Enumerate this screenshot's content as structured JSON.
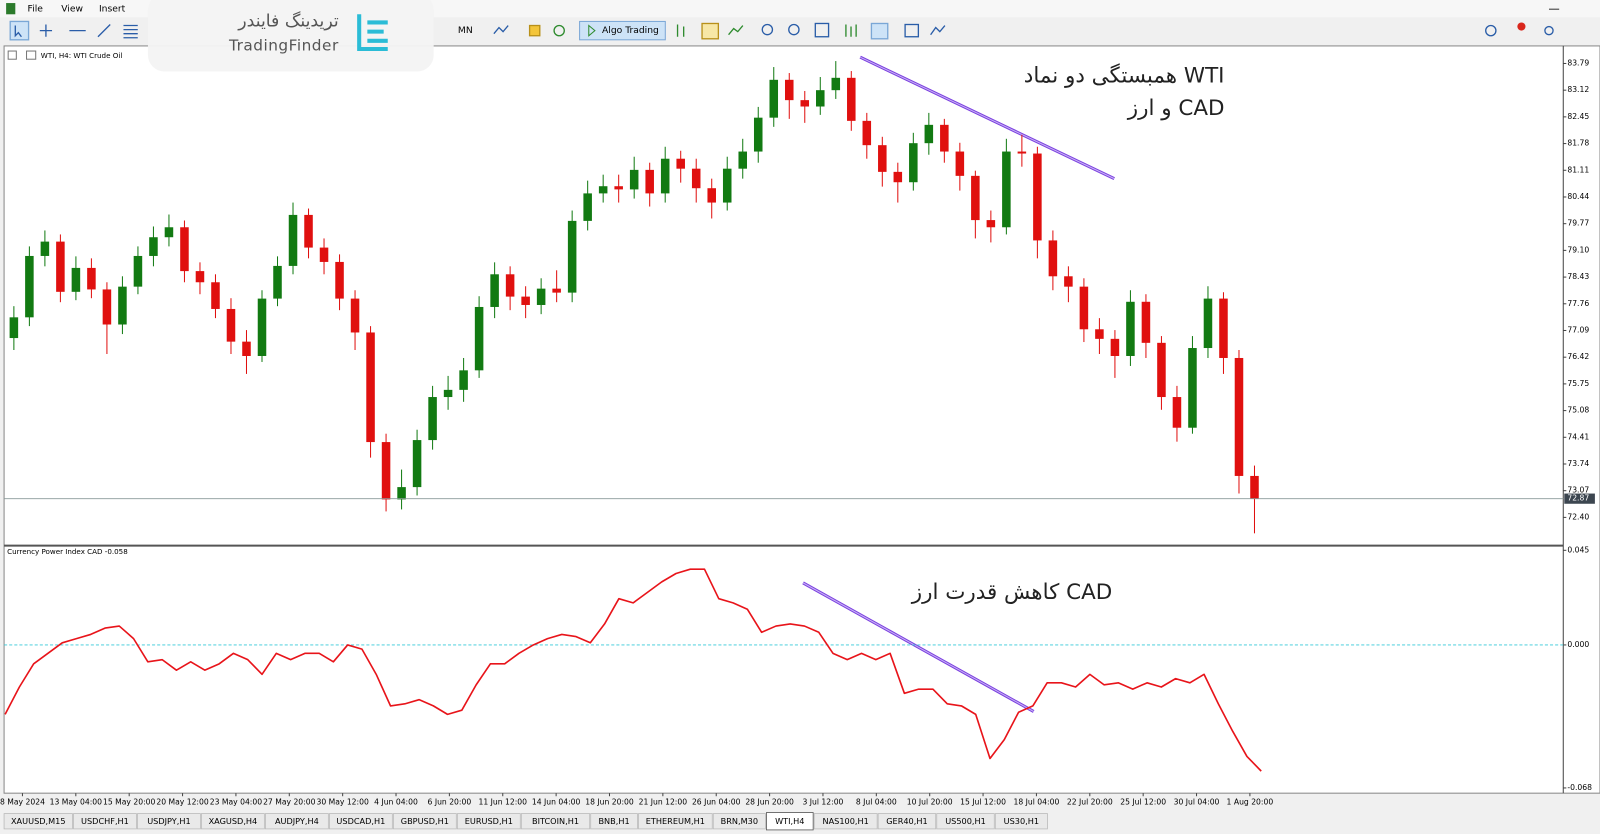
{
  "menu": [
    "File",
    "View",
    "Insert"
  ],
  "toolbar": {
    "period": "MN",
    "algo": "Algo Trading"
  },
  "logo": {
    "fa": "تریدینگ فایندر",
    "en": "TradingFinder"
  },
  "chart_data": [
    {
      "type": "candlestick",
      "title": "WTI, H4: WTI Crude Oil",
      "open": [
        76.9,
        77.42,
        78.96,
        79.32,
        78.06,
        78.66,
        78.12,
        77.24,
        78.19,
        78.96,
        79.43,
        79.68,
        78.58,
        78.3,
        77.63,
        76.81,
        76.45,
        77.89,
        78.71,
        79.99,
        79.17,
        78.81,
        77.89,
        77.04,
        74.29,
        72.85,
        73.16,
        74.34,
        75.42,
        75.6,
        76.09,
        77.68,
        78.5,
        77.94,
        77.73,
        78.14,
        78.04,
        79.84,
        80.53,
        80.71,
        80.63,
        81.12,
        80.53,
        81.4,
        81.15,
        80.66,
        80.3,
        81.15,
        81.58,
        82.43,
        83.38,
        82.87,
        82.71,
        83.12,
        83.43,
        82.35,
        81.74,
        81.07,
        80.81,
        81.79,
        82.25,
        81.58,
        80.97,
        79.86,
        79.68,
        81.58,
        81.53,
        79.35,
        78.45,
        78.19,
        77.12,
        76.88,
        76.45,
        77.81,
        76.78,
        75.42,
        74.65,
        76.65,
        77.89,
        76.4,
        73.44
      ],
      "high": [
        77.7,
        79.2,
        79.6,
        79.5,
        78.95,
        78.9,
        78.3,
        78.45,
        79.2,
        79.7,
        80.0,
        79.85,
        78.8,
        78.5,
        77.9,
        77.1,
        78.1,
        78.95,
        80.3,
        80.15,
        79.4,
        79.0,
        78.1,
        77.2,
        74.5,
        73.6,
        74.6,
        75.7,
        75.95,
        76.4,
        77.95,
        78.8,
        78.7,
        78.2,
        78.4,
        78.6,
        80.1,
        80.85,
        81.0,
        81.0,
        81.45,
        81.3,
        81.7,
        81.6,
        81.4,
        80.9,
        81.45,
        81.9,
        82.7,
        83.7,
        83.55,
        83.1,
        83.45,
        83.85,
        83.6,
        82.55,
        81.95,
        81.3,
        82.05,
        82.55,
        82.4,
        81.8,
        81.1,
        80.1,
        81.9,
        82.0,
        81.7,
        79.6,
        78.7,
        78.4,
        77.4,
        77.1,
        78.1,
        78.0,
        76.95,
        75.7,
        76.95,
        78.2,
        78.05,
        76.6,
        73.7
      ],
      "low": [
        76.6,
        77.2,
        78.7,
        77.8,
        77.85,
        77.9,
        76.5,
        77.0,
        78.0,
        78.7,
        79.2,
        78.3,
        78.0,
        77.4,
        76.5,
        76.0,
        76.3,
        77.7,
        78.5,
        78.9,
        78.5,
        77.6,
        76.6,
        73.9,
        72.55,
        72.6,
        72.95,
        74.1,
        75.1,
        75.3,
        75.9,
        77.4,
        77.6,
        77.4,
        77.5,
        77.8,
        77.8,
        79.6,
        80.3,
        80.3,
        80.4,
        80.2,
        80.3,
        80.8,
        80.3,
        79.9,
        80.1,
        80.9,
        81.3,
        82.2,
        82.4,
        82.3,
        82.5,
        82.9,
        82.1,
        81.4,
        80.7,
        80.3,
        80.6,
        81.5,
        81.3,
        80.6,
        79.4,
        79.3,
        79.5,
        81.2,
        78.9,
        78.1,
        77.8,
        76.8,
        76.5,
        75.9,
        76.2,
        76.4,
        75.1,
        74.3,
        74.5,
        76.4,
        76.0,
        73.0,
        72.0
      ],
      "close": [
        77.42,
        78.96,
        79.32,
        78.06,
        78.66,
        78.12,
        77.24,
        78.19,
        78.96,
        79.43,
        79.68,
        78.58,
        78.3,
        77.63,
        76.81,
        76.45,
        77.89,
        78.71,
        79.99,
        79.17,
        78.81,
        77.89,
        77.04,
        74.29,
        72.85,
        73.16,
        74.34,
        75.42,
        75.6,
        76.09,
        77.68,
        78.5,
        77.94,
        77.73,
        78.14,
        78.04,
        79.84,
        80.53,
        80.71,
        80.63,
        81.12,
        80.53,
        81.4,
        81.15,
        80.66,
        80.3,
        81.15,
        81.58,
        82.43,
        83.38,
        82.87,
        82.71,
        83.12,
        83.43,
        82.35,
        81.74,
        81.07,
        80.81,
        81.79,
        82.25,
        81.58,
        80.97,
        79.86,
        79.68,
        81.58,
        81.53,
        79.35,
        78.45,
        78.19,
        77.12,
        76.88,
        76.45,
        77.81,
        76.78,
        75.42,
        74.65,
        76.65,
        77.89,
        76.4,
        73.44,
        72.87
      ],
      "up_color": "#127a12",
      "down_color": "#e0100f",
      "ylim": [
        71.73,
        84.23
      ],
      "yticks": [
        83.79,
        83.12,
        82.45,
        81.78,
        81.11,
        80.44,
        79.77,
        {
          "value": 79.1,
          "label": "79.10"
        },
        78.43,
        77.76,
        77.09,
        76.42,
        75.75,
        75.08,
        74.41,
        73.74,
        73.07,
        {
          "value": 72.4,
          "label": "72.40"
        }
      ],
      "last_price": 72.87,
      "annotations": [
        "همبستگی دو نماد WTI",
        "و  ارز CAD"
      ]
    },
    {
      "type": "line",
      "title": "Currency Power Index CAD -0.058",
      "color": "#e8141a",
      "values": [
        -0.033,
        -0.02,
        -0.009,
        -0.004,
        0.001,
        0.003,
        0.005,
        0.008,
        0.009,
        0.003,
        -0.008,
        -0.007,
        -0.012,
        -0.008,
        -0.012,
        -0.009,
        -0.004,
        -0.007,
        -0.014,
        -0.004,
        -0.007,
        -0.004,
        -0.004,
        -0.008,
        0.0,
        -0.002,
        -0.014,
        -0.029,
        -0.028,
        -0.026,
        -0.029,
        -0.033,
        -0.031,
        -0.019,
        -0.009,
        -0.009,
        -0.004,
        0.0,
        0.003,
        0.005,
        0.004,
        0.001,
        0.01,
        0.022,
        0.02,
        0.025,
        0.03,
        0.034,
        0.036,
        0.036,
        0.022,
        0.02,
        0.017,
        0.006,
        0.009,
        0.01,
        0.009,
        0.006,
        -0.004,
        -0.007,
        -0.004,
        -0.007,
        -0.004,
        -0.023,
        -0.021,
        -0.021,
        -0.028,
        -0.029,
        -0.033,
        -0.054,
        -0.045,
        -0.032,
        -0.029,
        -0.018,
        -0.018,
        -0.02,
        -0.014,
        -0.019,
        -0.018,
        -0.021,
        -0.018,
        -0.02,
        -0.016,
        -0.018,
        -0.014,
        -0.028,
        -0.041,
        -0.053,
        -0.06
      ],
      "ylim": [
        -0.07,
        0.0465
      ],
      "yticks": [
        0.045,
        {
          "value": 0,
          "label": "0.000"
        },
        -0.068
      ],
      "level": 0,
      "x_labels": [
        "8 May 2024",
        "13 May 04:00",
        "15 May 20:00",
        "20 May 12:00",
        "23 May 04:00",
        "27 May 20:00",
        "30 May 12:00",
        "4 Jun 04:00",
        "6 Jun 20:00",
        "11 Jun 12:00",
        "14 Jun 04:00",
        "18 Jun 20:00",
        "21 Jun 12:00",
        "26 Jun 04:00",
        "28 Jun 20:00",
        "3 Jul 12:00",
        "8 Jul 04:00",
        "10 Jul 20:00",
        "15 Jul 12:00",
        "18 Jul 04:00",
        "22 Jul 20:00",
        "25 Jul 12:00",
        "30 Jul 04:00",
        "1 Aug 20:00"
      ],
      "annotations": [
        "کاهش قدرت ارز CAD"
      ]
    }
  ],
  "tabs": [
    {
      "label": "XAUUSD,M15"
    },
    {
      "label": "USDCHF,H1"
    },
    {
      "label": "USDJPY,H1"
    },
    {
      "label": "XAGUSD,H4"
    },
    {
      "label": "AUDJPY,H4"
    },
    {
      "label": "USDCAD,H1"
    },
    {
      "label": "GBPUSD,H1"
    },
    {
      "label": "EURUSD,H1"
    },
    {
      "label": "BITCOIN,H1"
    },
    {
      "label": "BNB,H1"
    },
    {
      "label": "ETHEREUM,H1"
    },
    {
      "label": "BRN,M30"
    },
    {
      "label": "WTI,H4",
      "active": true
    },
    {
      "label": "NAS100,H1"
    },
    {
      "label": "GER40,H1"
    },
    {
      "label": "US500,H1"
    },
    {
      "label": "US30,H1"
    }
  ]
}
